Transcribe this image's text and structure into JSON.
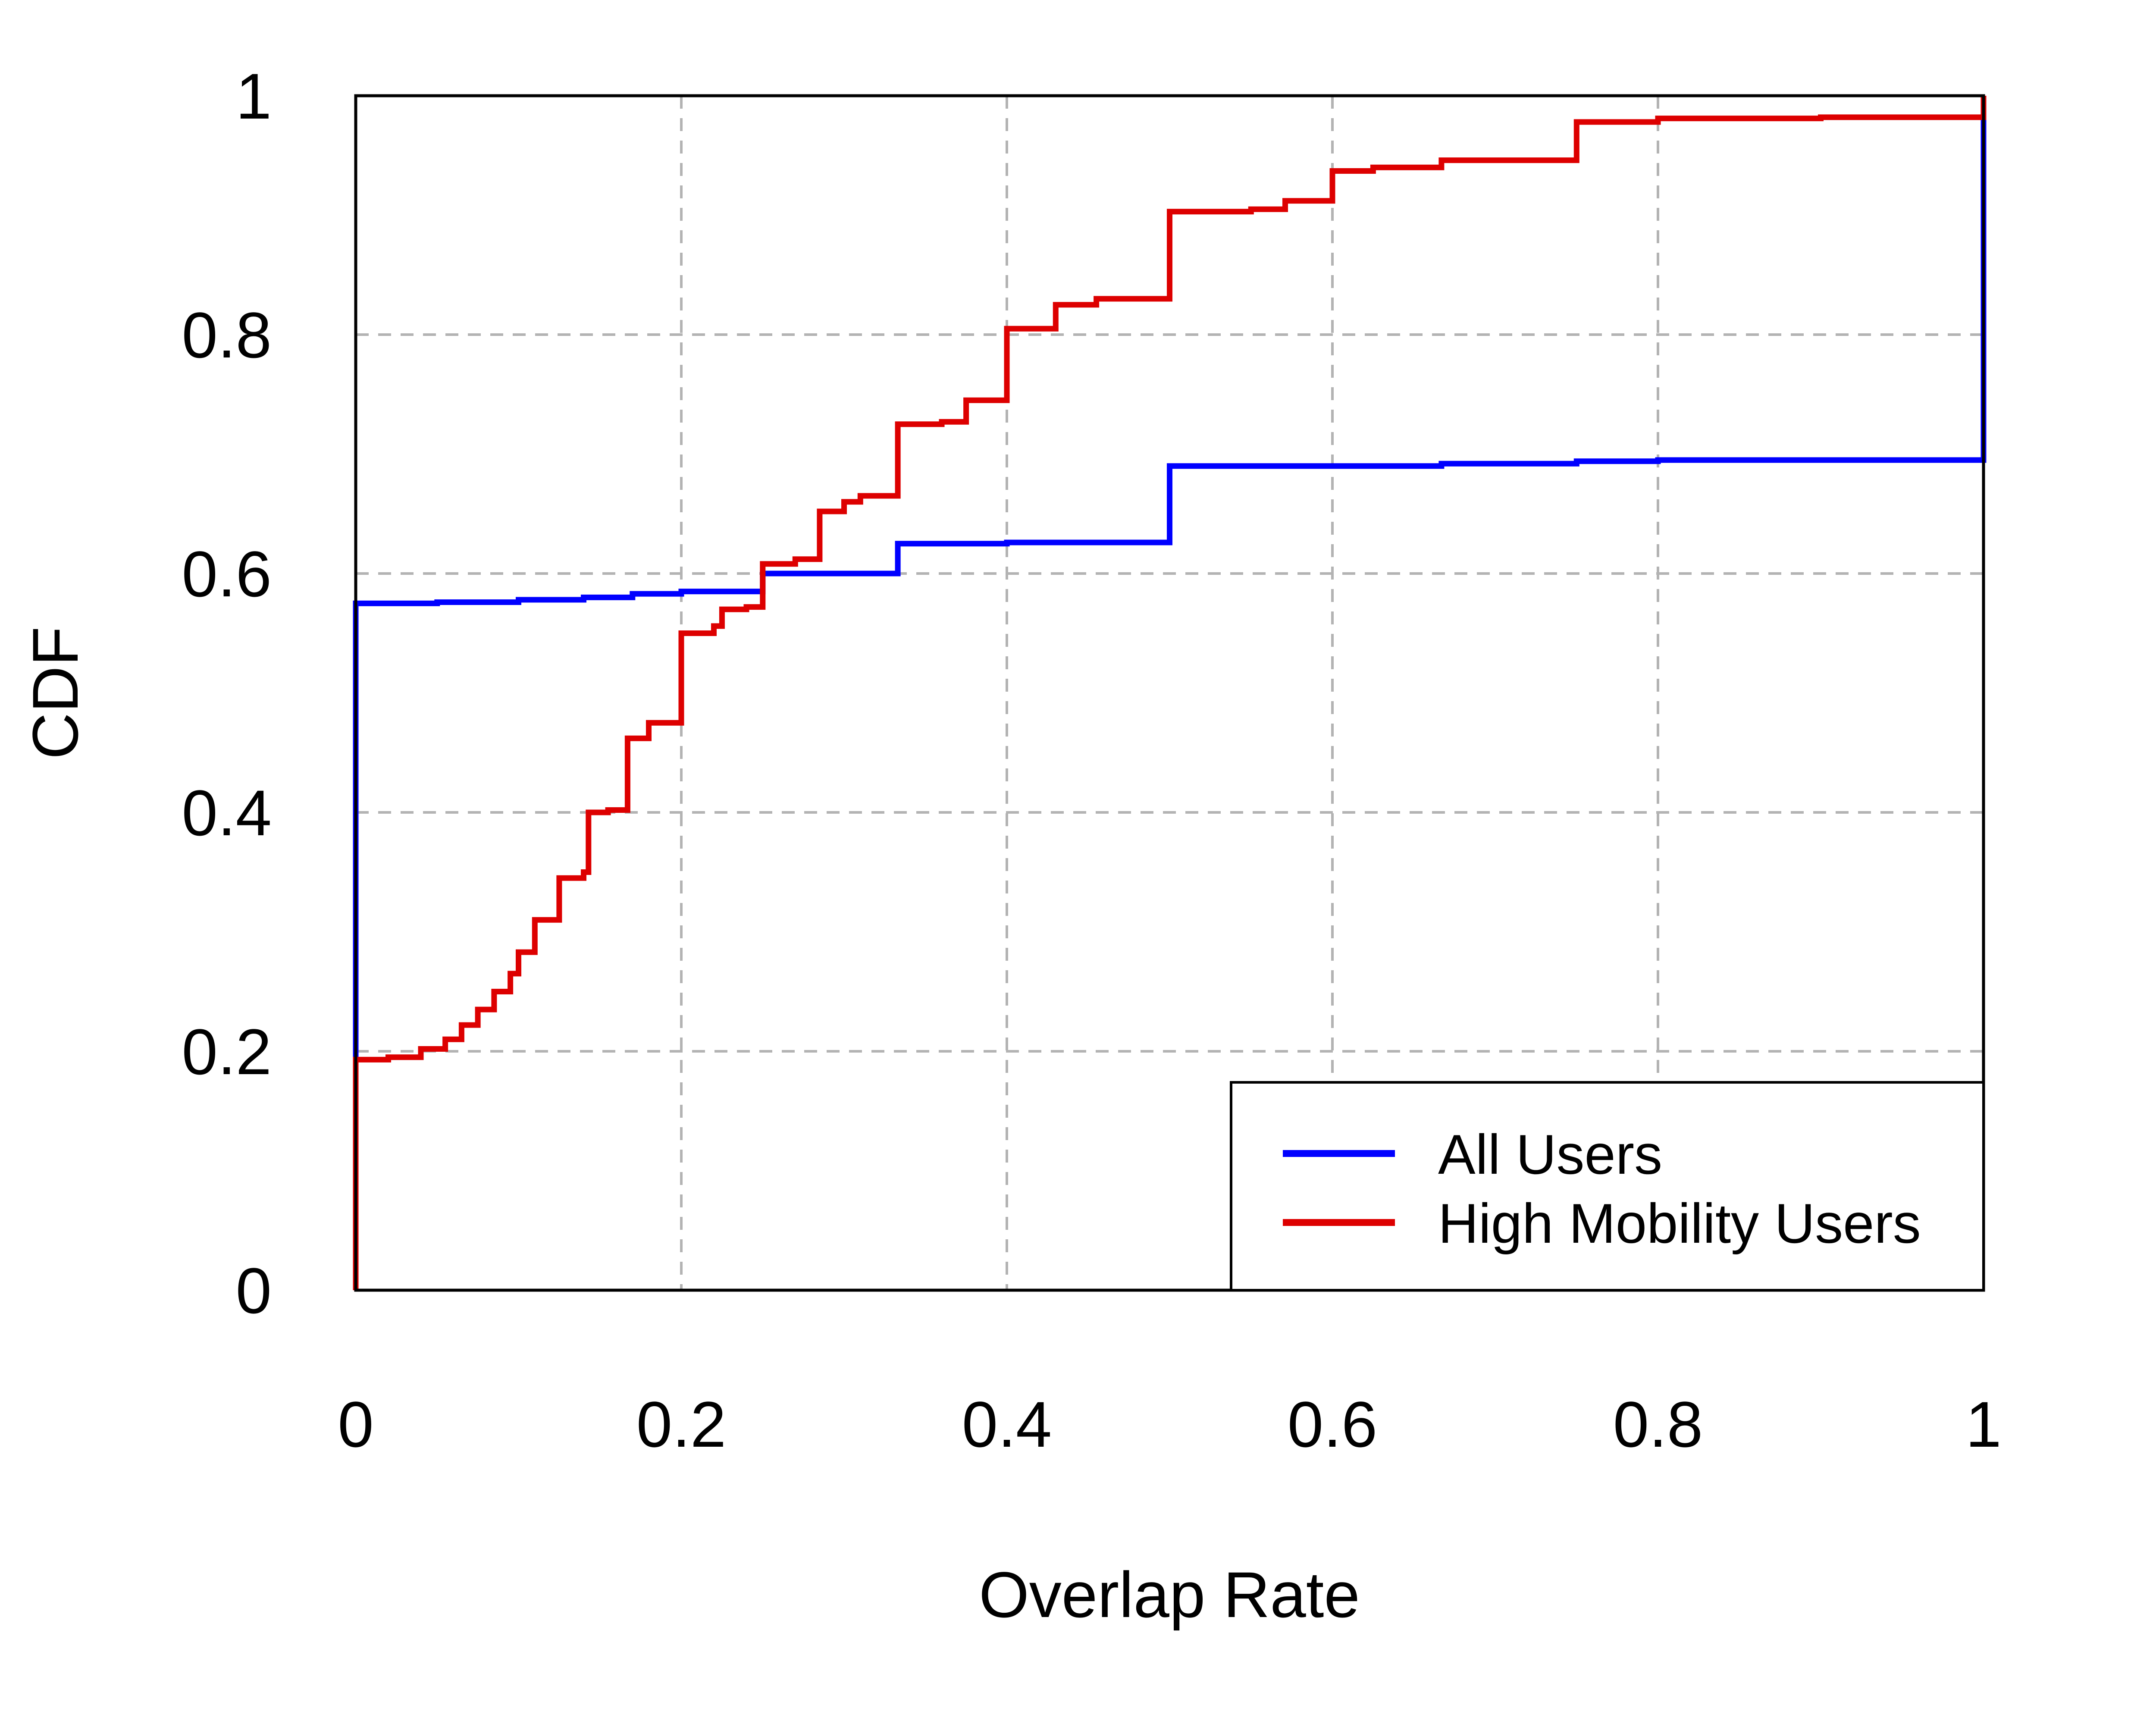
{
  "chart_data": {
    "type": "line",
    "title": "",
    "xlabel": "Overlap Rate",
    "ylabel": "CDF",
    "xlim": [
      0,
      1
    ],
    "ylim": [
      0,
      1
    ],
    "x_ticks": [
      "0",
      "0.2",
      "0.4",
      "0.6",
      "0.8",
      "1"
    ],
    "y_ticks": [
      "0",
      "0.2",
      "0.4",
      "0.6",
      "0.8",
      "1"
    ],
    "grid": true,
    "grid_style": "dashed",
    "legend_position": "bottom-right",
    "step": true,
    "series": [
      {
        "name": "All Users",
        "color": "#0000ff",
        "points": [
          [
            0.0,
            0.0
          ],
          [
            0.0,
            0.575
          ],
          [
            0.05,
            0.576
          ],
          [
            0.1,
            0.578
          ],
          [
            0.14,
            0.58
          ],
          [
            0.17,
            0.583
          ],
          [
            0.2,
            0.585
          ],
          [
            0.25,
            0.588
          ],
          [
            0.25,
            0.6
          ],
          [
            0.333,
            0.6
          ],
          [
            0.333,
            0.625
          ],
          [
            0.4,
            0.626
          ],
          [
            0.5,
            0.628
          ],
          [
            0.5,
            0.69
          ],
          [
            0.667,
            0.692
          ],
          [
            0.75,
            0.694
          ],
          [
            0.8,
            0.695
          ],
          [
            1.0,
            0.695
          ],
          [
            1.0,
            1.0
          ]
        ]
      },
      {
        "name": "High Mobility Users",
        "color": "#dd0000",
        "points": [
          [
            0.0,
            0.0
          ],
          [
            0.0,
            0.193
          ],
          [
            0.02,
            0.195
          ],
          [
            0.04,
            0.202
          ],
          [
            0.055,
            0.21
          ],
          [
            0.065,
            0.222
          ],
          [
            0.075,
            0.235
          ],
          [
            0.085,
            0.25
          ],
          [
            0.095,
            0.265
          ],
          [
            0.1,
            0.27
          ],
          [
            0.1,
            0.283
          ],
          [
            0.11,
            0.285
          ],
          [
            0.11,
            0.31
          ],
          [
            0.125,
            0.315
          ],
          [
            0.125,
            0.345
          ],
          [
            0.14,
            0.35
          ],
          [
            0.143,
            0.35
          ],
          [
            0.143,
            0.4
          ],
          [
            0.155,
            0.402
          ],
          [
            0.167,
            0.405
          ],
          [
            0.167,
            0.462
          ],
          [
            0.18,
            0.465
          ],
          [
            0.18,
            0.475
          ],
          [
            0.2,
            0.476
          ],
          [
            0.2,
            0.55
          ],
          [
            0.22,
            0.556
          ],
          [
            0.225,
            0.57
          ],
          [
            0.24,
            0.572
          ],
          [
            0.25,
            0.575
          ],
          [
            0.25,
            0.608
          ],
          [
            0.27,
            0.612
          ],
          [
            0.285,
            0.625
          ],
          [
            0.285,
            0.652
          ],
          [
            0.3,
            0.655
          ],
          [
            0.3,
            0.66
          ],
          [
            0.31,
            0.665
          ],
          [
            0.333,
            0.666
          ],
          [
            0.333,
            0.725
          ],
          [
            0.36,
            0.727
          ],
          [
            0.375,
            0.73
          ],
          [
            0.375,
            0.745
          ],
          [
            0.4,
            0.746
          ],
          [
            0.4,
            0.805
          ],
          [
            0.43,
            0.808
          ],
          [
            0.43,
            0.825
          ],
          [
            0.455,
            0.83
          ],
          [
            0.5,
            0.833
          ],
          [
            0.5,
            0.903
          ],
          [
            0.55,
            0.905
          ],
          [
            0.571,
            0.912
          ],
          [
            0.6,
            0.913
          ],
          [
            0.6,
            0.937
          ],
          [
            0.625,
            0.94
          ],
          [
            0.667,
            0.942
          ],
          [
            0.667,
            0.946
          ],
          [
            0.75,
            0.95
          ],
          [
            0.75,
            0.978
          ],
          [
            0.8,
            0.981
          ],
          [
            0.9,
            0.982
          ],
          [
            1.0,
            0.983
          ],
          [
            1.0,
            1.0
          ]
        ]
      }
    ]
  }
}
